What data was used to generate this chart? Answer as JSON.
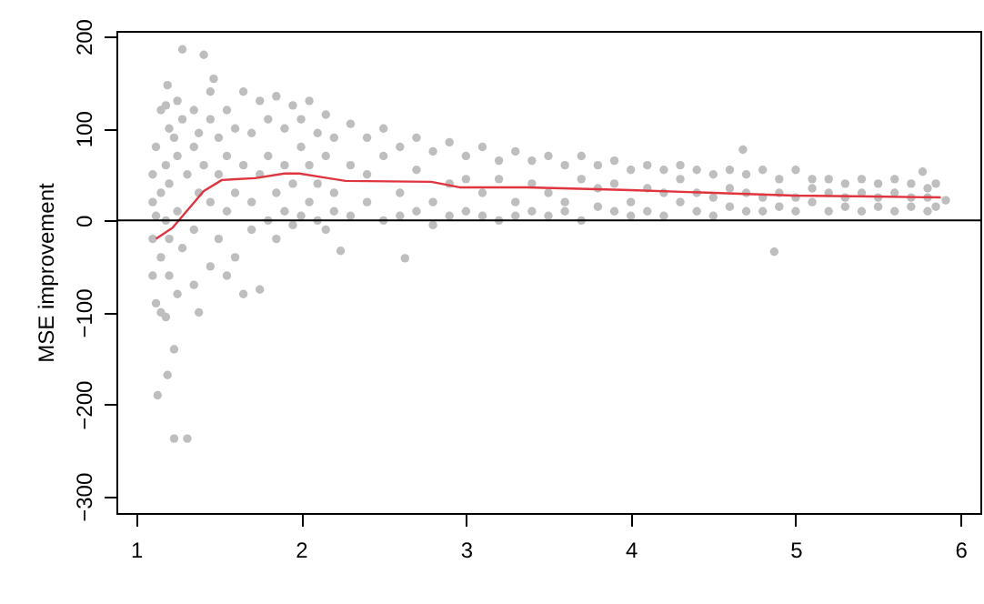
{
  "chart_data": {
    "type": "scatter",
    "ylabel": "MSE improvement",
    "xlim": [
      0.88,
      6.12
    ],
    "xticks": [
      1,
      2,
      3,
      4,
      5,
      6
    ],
    "ylim": [
      -318,
      206
    ],
    "yticks": [
      {
        "value": -300,
        "label": "−300"
      },
      {
        "value": -200,
        "label": "−200"
      },
      {
        "value": -100,
        "label": "−100"
      },
      0,
      100,
      200
    ],
    "grid": false,
    "marker": "circle",
    "ref_lines": [
      {
        "axis": "y",
        "value": 0,
        "color": "#000000"
      }
    ],
    "series": [
      {
        "color": "#bebebe",
        "x": [
          1.1,
          1.1,
          1.1,
          1.1,
          1.12,
          1.12,
          1.12,
          1.15,
          1.15,
          1.15,
          1.15,
          1.18,
          1.18,
          1.18,
          1.18,
          1.19,
          1.19,
          1.13,
          1.2,
          1.2,
          1.2,
          1.2,
          1.23,
          1.23,
          1.23,
          1.25,
          1.25,
          1.25,
          1.25,
          1.28,
          1.28,
          1.28,
          1.31,
          1.31,
          1.35,
          1.35,
          1.35,
          1.35,
          1.38,
          1.38,
          1.38,
          1.41,
          1.41,
          1.45,
          1.45,
          1.45,
          1.45,
          1.47,
          1.5,
          1.5,
          1.5,
          1.55,
          1.55,
          1.55,
          1.55,
          1.6,
          1.6,
          1.6,
          1.65,
          1.65,
          1.65,
          1.7,
          1.7,
          1.7,
          1.75,
          1.75,
          1.75,
          1.8,
          1.8,
          1.8,
          1.85,
          1.85,
          1.85,
          1.9,
          1.9,
          1.9,
          1.95,
          1.95,
          1.95,
          2.0,
          2.0,
          2.0,
          2.05,
          2.05,
          2.05,
          2.1,
          2.1,
          2.1,
          2.15,
          2.15,
          2.15,
          2.2,
          2.2,
          2.2,
          2.24,
          2.3,
          2.3,
          2.3,
          2.4,
          2.4,
          2.4,
          2.5,
          2.5,
          2.5,
          2.6,
          2.6,
          2.6,
          2.63,
          2.7,
          2.7,
          2.7,
          2.8,
          2.8,
          2.8,
          2.9,
          2.9,
          2.9,
          3.0,
          3.0,
          3.0,
          3.1,
          3.1,
          3.1,
          3.2,
          3.2,
          3.2,
          3.3,
          3.3,
          3.3,
          3.4,
          3.4,
          3.4,
          3.5,
          3.5,
          3.5,
          3.6,
          3.6,
          3.6,
          3.7,
          3.7,
          3.7,
          3.8,
          3.8,
          3.8,
          3.9,
          3.9,
          3.9,
          4.0,
          4.0,
          4.0,
          4.1,
          4.1,
          4.1,
          4.2,
          4.2,
          4.2,
          4.3,
          4.3,
          4.3,
          4.4,
          4.4,
          4.4,
          4.5,
          4.5,
          4.5,
          4.6,
          4.6,
          4.6,
          4.68,
          4.7,
          4.7,
          4.7,
          4.8,
          4.8,
          4.8,
          4.87,
          4.9,
          4.9,
          4.9,
          5.0,
          5.0,
          5.0,
          5.1,
          5.1,
          5.1,
          5.2,
          5.2,
          5.2,
          5.3,
          5.3,
          5.3,
          5.4,
          5.4,
          5.4,
          5.5,
          5.5,
          5.5,
          5.6,
          5.6,
          5.6,
          5.7,
          5.7,
          5.7,
          5.77,
          5.8,
          5.8,
          5.8,
          5.85,
          5.85,
          5.91
        ],
        "values": [
          20,
          -20,
          50,
          -60,
          80,
          -90,
          5,
          120,
          -100,
          30,
          -40,
          125,
          60,
          -105,
          0,
          147,
          -168,
          -190,
          100,
          -60,
          40,
          -20,
          -237,
          -140,
          90,
          130,
          70,
          -80,
          10,
          186,
          110,
          -30,
          -237,
          50,
          120,
          -70,
          80,
          -10,
          95,
          -100,
          30,
          180,
          60,
          110,
          -50,
          20,
          140,
          154,
          90,
          -20,
          50,
          120,
          -60,
          10,
          70,
          100,
          -40,
          30,
          140,
          60,
          -80,
          95,
          -10,
          20,
          130,
          50,
          -75,
          110,
          0,
          70,
          135,
          30,
          -20,
          100,
          60,
          10,
          125,
          -5,
          40,
          110,
          80,
          5,
          130,
          20,
          60,
          95,
          0,
          40,
          115,
          70,
          -10,
          90,
          30,
          10,
          -33,
          105,
          60,
          5,
          90,
          20,
          50,
          100,
          0,
          70,
          80,
          30,
          5,
          -41,
          90,
          10,
          55,
          75,
          20,
          -5,
          85,
          40,
          5,
          70,
          10,
          45,
          80,
          30,
          5,
          65,
          0,
          45,
          75,
          20,
          5,
          65,
          40,
          10,
          70,
          5,
          30,
          60,
          20,
          10,
          70,
          45,
          0,
          60,
          15,
          35,
          65,
          10,
          40,
          55,
          20,
          5,
          60,
          35,
          10,
          55,
          5,
          30,
          60,
          20,
          45,
          55,
          10,
          30,
          50,
          25,
          5,
          55,
          15,
          35,
          77,
          50,
          10,
          30,
          55,
          25,
          10,
          -34,
          45,
          15,
          30,
          55,
          10,
          25,
          45,
          20,
          35,
          45,
          10,
          30,
          40,
          15,
          25,
          45,
          10,
          30,
          40,
          15,
          25,
          45,
          10,
          30,
          40,
          15,
          25,
          53,
          35,
          10,
          25,
          40,
          15,
          22
        ]
      },
      {
        "type": "line",
        "color": "#e0353f",
        "marker": "none",
        "line_style": "solid",
        "x": [
          1.12,
          1.22,
          1.41,
          1.52,
          1.72,
          1.9,
          1.99,
          2.13,
          2.27,
          2.79,
          2.96,
          3.37,
          4.0,
          4.99,
          5.47,
          5.88
        ],
        "values": [
          -20,
          -8,
          32,
          44,
          46,
          51,
          51,
          47,
          43,
          42,
          36,
          36,
          33,
          27,
          26,
          25
        ]
      }
    ]
  }
}
